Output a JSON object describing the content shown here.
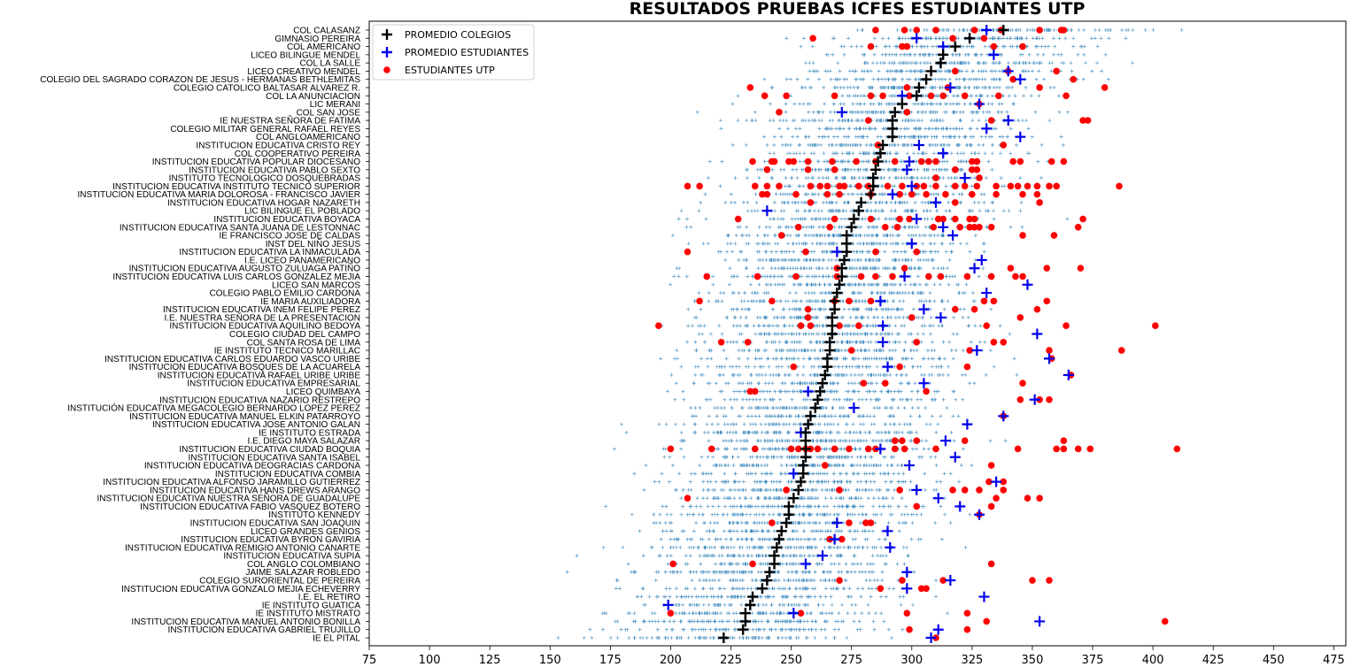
{
  "chart_data": {
    "type": "scatter",
    "title": "RESULTADOS PRUEBAS ICFES ESTUDIANTES UTP",
    "xlim": [
      75,
      480
    ],
    "xticks": [
      75,
      100,
      125,
      150,
      175,
      200,
      225,
      250,
      275,
      300,
      325,
      350,
      375,
      400,
      425,
      450,
      475
    ],
    "legend_position": "top-left",
    "colors": {
      "colegio": "#000000",
      "estudiantes": "#0000ee",
      "utp": "#ff0000",
      "dist": "#1f77b4"
    },
    "legend": [
      {
        "label": "PROMEDIO COLEGIOS",
        "marker": "plus",
        "color": "#000000"
      },
      {
        "label": "PROMEDIO ESTUDIANTES",
        "marker": "plus",
        "color": "#0000ee"
      },
      {
        "label": "ESTUDIANTES UTP",
        "marker": "dot",
        "color": "#ff0000"
      }
    ],
    "schools": [
      {
        "name": "COL CALASANZ",
        "colegio": 338,
        "estudiantes": 331,
        "utp": [
          285,
          297,
          302,
          310,
          326,
          337,
          353,
          362,
          363
        ]
      },
      {
        "name": "GIMNASIO PEREIRA",
        "colegio": 324,
        "estudiantes": 302,
        "utp": [
          259,
          317,
          330
        ]
      },
      {
        "name": "COL AMERICANO",
        "colegio": 318,
        "estudiantes": 313,
        "utp": [
          283,
          296,
          298,
          334,
          346
        ]
      },
      {
        "name": "LICEO BILINGUE MENDEL",
        "colegio": 313,
        "estudiantes": 334,
        "utp": []
      },
      {
        "name": "COL LA SALLE",
        "colegio": 312,
        "estudiantes": 312,
        "utp": []
      },
      {
        "name": "LICEO CREATIVO MENDEL",
        "colegio": 308,
        "estudiantes": 340,
        "utp": [
          318,
          340,
          360
        ]
      },
      {
        "name": "COLEGIO DEL SAGRADO CORAZON DE JESUS - HERMANAS BETHLEMITAS",
        "colegio": 306,
        "estudiantes": 345,
        "utp": [
          342,
          367
        ]
      },
      {
        "name": "COLEGIO CATOLICO BALTASAR ALVAREZ R.",
        "colegio": 303,
        "estudiantes": 316,
        "utp": [
          233,
          298,
          315,
          353,
          380
        ]
      },
      {
        "name": "COL LA ANUNCIACION",
        "colegio": 302,
        "estudiantes": 296,
        "utp": [
          239,
          248,
          268,
          283,
          288,
          299,
          308,
          313,
          322,
          336,
          364
        ]
      },
      {
        "name": "LIC MERANI",
        "colegio": 296,
        "estudiantes": 328,
        "utp": [
          328
        ]
      },
      {
        "name": "COL SAN JOSE",
        "colegio": 293,
        "estudiantes": 271,
        "utp": [
          245,
          298
        ]
      },
      {
        "name": "IE NUESTRA SEÑORA DE FATIMA",
        "colegio": 292,
        "estudiantes": 340,
        "utp": [
          282,
          333,
          371,
          373
        ]
      },
      {
        "name": "COLEGIO MILITAR GENERAL RAFAEL REYES",
        "colegio": 292,
        "estudiantes": 331,
        "utp": []
      },
      {
        "name": "COL ANGLOAMERICANO",
        "colegio": 292,
        "estudiantes": 345,
        "utp": []
      },
      {
        "name": "INSTITUCION EDUCATIVA CRISTO REY",
        "colegio": 288,
        "estudiantes": 303,
        "utp": [
          286,
          338
        ]
      },
      {
        "name": "COL COOPERATIVO PEREIRA",
        "colegio": 287,
        "estudiantes": 313,
        "utp": []
      },
      {
        "name": "INSTITUCION EDUCATIVA POPULAR DIOCESANO",
        "colegio": 286,
        "estudiantes": 299,
        "utp": [
          234,
          242,
          243,
          249,
          251,
          257,
          267,
          277,
          285,
          293,
          304,
          307,
          310,
          325,
          327,
          342,
          345,
          358,
          363
        ]
      },
      {
        "name": "INSTITUCION EDUCATIVA PABLO SEXTO",
        "colegio": 285,
        "estudiantes": 298,
        "utp": [
          240,
          257,
          268,
          318,
          325,
          327
        ]
      },
      {
        "name": "INSTITUTO TECNOLOGICO DOSQUEBRADAS",
        "colegio": 284,
        "estudiantes": 322,
        "utp": [
          310,
          328
        ]
      },
      {
        "name": "INSTITUCION EDUCATIVA INSTITUTO TECNICO SUPERIOR",
        "colegio": 284,
        "estudiantes": 300,
        "utp": [
          207,
          212,
          235,
          240,
          245,
          258,
          262,
          265,
          270,
          272,
          278,
          282,
          290,
          296,
          302,
          305,
          310,
          318,
          322,
          327,
          335,
          341,
          344,
          348,
          352,
          357,
          360,
          386
        ]
      },
      {
        "name": "INSTITUCION EDUCATIVA MARIA DOLOROSA - FRANCISCO JAVIER",
        "colegio": 283,
        "estudiantes": 292,
        "utp": [
          238,
          240,
          252,
          265,
          270,
          283,
          295,
          300,
          306,
          314,
          325,
          335,
          346,
          352
        ]
      },
      {
        "name": "INSTITUCION EDUCATIVA HOGAR  NAZARETH",
        "colegio": 279,
        "estudiantes": 310,
        "utp": [
          258,
          318,
          353
        ]
      },
      {
        "name": "LIC BILINGUE EL POBLADO",
        "colegio": 278,
        "estudiantes": 240,
        "utp": []
      },
      {
        "name": "INSTITUCION EDUCATIVA BOYACA",
        "colegio": 276,
        "estudiantes": 302,
        "utp": [
          228,
          268,
          283,
          295,
          299,
          311,
          313,
          318,
          324,
          326,
          371
        ]
      },
      {
        "name": "INSTITUCION EDUCATIVA SANTA JUANA DE LESTONNAC",
        "colegio": 275,
        "estudiantes": 313,
        "utp": [
          253,
          266,
          289,
          294,
          309,
          320,
          324,
          326,
          328,
          333,
          369
        ]
      },
      {
        "name": "IE FRANCISCO JOSE DE CALDAS",
        "colegio": 273,
        "estudiantes": 317,
        "utp": [
          246,
          346,
          359
        ]
      },
      {
        "name": "INST DEL NIÑO JESUS",
        "colegio": 273,
        "estudiantes": 300,
        "utp": []
      },
      {
        "name": "INSTITUCION EDUCATIVA LA INMACULADA",
        "colegio": 273,
        "estudiantes": 269,
        "utp": [
          207,
          256,
          285,
          302
        ]
      },
      {
        "name": "I.E. LICEO PANAMERICANO",
        "colegio": 272,
        "estudiantes": 329,
        "utp": []
      },
      {
        "name": "INSTITUCION EDUCATIVA AUGUSTO ZULUAGA PATIÑO",
        "colegio": 271,
        "estudiantes": 326,
        "utp": [
          269,
          297,
          341,
          356,
          370
        ]
      },
      {
        "name": "INSTITUCION EDUCATIVA LUIS CARLOS GONZALEZ MEJIA",
        "colegio": 271,
        "estudiantes": 297,
        "utp": [
          215,
          236,
          252,
          269,
          279,
          285,
          292,
          307,
          312,
          323,
          333,
          343,
          346
        ]
      },
      {
        "name": "LICEO SAN MARCOS",
        "colegio": 270,
        "estudiantes": 348,
        "utp": []
      },
      {
        "name": "COLEGIO PABLO EMILIO CARDONA",
        "colegio": 269,
        "estudiantes": 331,
        "utp": []
      },
      {
        "name": "IE MARIA AUXILIADORA",
        "colegio": 268,
        "estudiantes": 287,
        "utp": [
          212,
          242,
          268,
          274,
          283,
          330,
          334,
          356
        ]
      },
      {
        "name": "INSTITUCION EDUCATIVA INEM FELIPE PEREZ",
        "colegio": 268,
        "estudiantes": 305,
        "utp": [
          257,
          318,
          326,
          352
        ]
      },
      {
        "name": "I.E. NUESTRA SEÑORA DE LA PRESENTACION",
        "colegio": 267,
        "estudiantes": 312,
        "utp": [
          257,
          300,
          345
        ]
      },
      {
        "name": "INSTITUCION EDUCATIVA AQUILINO BEDOYA",
        "colegio": 267,
        "estudiantes": 288,
        "utp": [
          195,
          254,
          258,
          270,
          278,
          331,
          364,
          401
        ]
      },
      {
        "name": "COLEGIO CIUDAD DEL CAMPO",
        "colegio": 267,
        "estudiantes": 352,
        "utp": []
      },
      {
        "name": "COL SANTA ROSA DE LIMA",
        "colegio": 266,
        "estudiantes": 288,
        "utp": [
          221,
          232,
          302,
          334,
          338
        ]
      },
      {
        "name": "IE INSTITUTO TECNICO MARILLAC",
        "colegio": 266,
        "estudiantes": 327,
        "utp": [
          275,
          324,
          357,
          387
        ]
      },
      {
        "name": "INSTITUCION EDUCATIVA CARLOS EDUARDO VASCO URIBE",
        "colegio": 265,
        "estudiantes": 357,
        "utp": [
          358
        ]
      },
      {
        "name": "INSTITUCION EDUCATIVA BOSQUES DE LA ACUARELA",
        "colegio": 265,
        "estudiantes": 290,
        "utp": [
          251,
          295,
          323
        ]
      },
      {
        "name": "INSTITUCION EDUCATIVA RAFAEL URIBE URIBE",
        "colegio": 264,
        "estudiantes": 365,
        "utp": [
          366
        ]
      },
      {
        "name": "INSTITUCION EDUCATIVA EMPRESARIAL",
        "colegio": 263,
        "estudiantes": 305,
        "utp": [
          280,
          289,
          346
        ]
      },
      {
        "name": "LICEO QUIMBAYA",
        "colegio": 262,
        "estudiantes": 257,
        "utp": [
          233,
          235,
          306
        ]
      },
      {
        "name": "INSTITUCION EDUCATIVA NAZARIO RESTREPO",
        "colegio": 261,
        "estudiantes": 351,
        "utp": [
          345,
          353,
          357
        ]
      },
      {
        "name": "INSTITUCIÓN EDUCATIVA MEGACOLEGIO BERNARDO LOPEZ PEREZ",
        "colegio": 260,
        "estudiantes": 276,
        "utp": []
      },
      {
        "name": "INSTITUCION EDUCATIVA MANUEL ELKIN PATARROYO",
        "colegio": 258,
        "estudiantes": 338,
        "utp": [
          338
        ]
      },
      {
        "name": "INSTITUCION EDUCATIVA JOSE ANTONIO GALAN",
        "colegio": 257,
        "estudiantes": 323,
        "utp": []
      },
      {
        "name": "IE INSTITUTO ESTRADA",
        "colegio": 256,
        "estudiantes": 254,
        "utp": []
      },
      {
        "name": "I.E. DIEGO MAYA SALAZAR",
        "colegio": 256,
        "estudiantes": 314,
        "utp": [
          293,
          296,
          302,
          322,
          363
        ]
      },
      {
        "name": "INSTITUCION EDUCATIVA CIUDAD BOQUIA",
        "colegio": 256,
        "estudiantes": 287,
        "utp": [
          200,
          217,
          235,
          250,
          253,
          256,
          258,
          261,
          268,
          274,
          282,
          285,
          293,
          297,
          310,
          344,
          360,
          363,
          369,
          374,
          410
        ]
      },
      {
        "name": "INSTITUCION EDUCATIVA SANTA ISABEL",
        "colegio": 256,
        "estudiantes": 318,
        "utp": []
      },
      {
        "name": "INSTITUCION EDUCATIVA DEOGRACIAS CARDONA",
        "colegio": 255,
        "estudiantes": 299,
        "utp": [
          264,
          333
        ]
      },
      {
        "name": "INSTITUCION EDUCATIVA COMBIA",
        "colegio": 255,
        "estudiantes": 251,
        "utp": []
      },
      {
        "name": "INSTITUCION EDUCATIVA ALFONSO JARAMILLO GUTIERREZ",
        "colegio": 254,
        "estudiantes": 335,
        "utp": [
          332,
          338
        ]
      },
      {
        "name": "INSTITUCION EDUCATIVA HANS DREWS ARANGO",
        "colegio": 253,
        "estudiantes": 302,
        "utp": [
          248,
          270,
          295,
          317,
          322,
          328,
          338
        ]
      },
      {
        "name": "INSTITUCION EDUCATIVA NUESTRA SEÑORA DE GUADALUPE",
        "colegio": 251,
        "estudiantes": 311,
        "utp": [
          207,
          335,
          348,
          353
        ]
      },
      {
        "name": "INSTITUCION EDUCATIVA FABIO VASQUEZ BOTERO",
        "colegio": 249,
        "estudiantes": 320,
        "utp": [
          302,
          333
        ]
      },
      {
        "name": "INSTITUTO KENNEDY",
        "colegio": 249,
        "estudiantes": 328,
        "utp": [
          328
        ]
      },
      {
        "name": "INSTITUCION EDUCATIVA SAN JOAQUIN",
        "colegio": 248,
        "estudiantes": 269,
        "utp": [
          242,
          274,
          281,
          283
        ]
      },
      {
        "name": "LICEO GRANDES GENIOS",
        "colegio": 246,
        "estudiantes": 290,
        "utp": []
      },
      {
        "name": "INSTITUCION EDUCATIVA BYRON GAVIRIA",
        "colegio": 245,
        "estudiantes": 268,
        "utp": [
          266,
          271
        ]
      },
      {
        "name": "INSTITUCION EDUCATIVA REMIGIO ANTONIO CANARTE",
        "colegio": 244,
        "estudiantes": 291,
        "utp": []
      },
      {
        "name": "INSTITUCION EDUCATIVA SUPIA",
        "colegio": 243,
        "estudiantes": 263,
        "utp": []
      },
      {
        "name": "COL ANGLO COLOMBIANO",
        "colegio": 243,
        "estudiantes": 256,
        "utp": [
          201,
          234,
          333
        ]
      },
      {
        "name": "JAIME SALAZAR ROBLEDO",
        "colegio": 241,
        "estudiantes": 298,
        "utp": []
      },
      {
        "name": "COLEGIO SURORIENTAL DE PEREIRA",
        "colegio": 240,
        "estudiantes": 316,
        "utp": [
          270,
          296,
          313,
          350,
          357
        ]
      },
      {
        "name": "INSTITUCION EDUCATIVA GONZALO MEJIA ECHEVERRY",
        "colegio": 238,
        "estudiantes": 298,
        "utp": [
          287,
          304,
          306
        ]
      },
      {
        "name": "I.E. EL RETIRO",
        "colegio": 234,
        "estudiantes": 330,
        "utp": []
      },
      {
        "name": "IE INSTITUTO GUATICA",
        "colegio": 233,
        "estudiantes": 199,
        "utp": []
      },
      {
        "name": "IE INSTITUTO MISTRATO",
        "colegio": 231,
        "estudiantes": 251,
        "utp": [
          200,
          254,
          298,
          323
        ]
      },
      {
        "name": "INSTITUCION EDUCATIVA MANUEL ANTONIO BONILLA",
        "colegio": 231,
        "estudiantes": 353,
        "utp": [
          331,
          405
        ]
      },
      {
        "name": "INSTITUCION EDUCATIVA GABRIEL TRUJILLO",
        "colegio": 230,
        "estudiantes": 311,
        "utp": [
          299,
          323
        ]
      },
      {
        "name": "IE EL PITAL",
        "colegio": 222,
        "estudiantes": 308,
        "utp": [
          310
        ]
      }
    ]
  }
}
